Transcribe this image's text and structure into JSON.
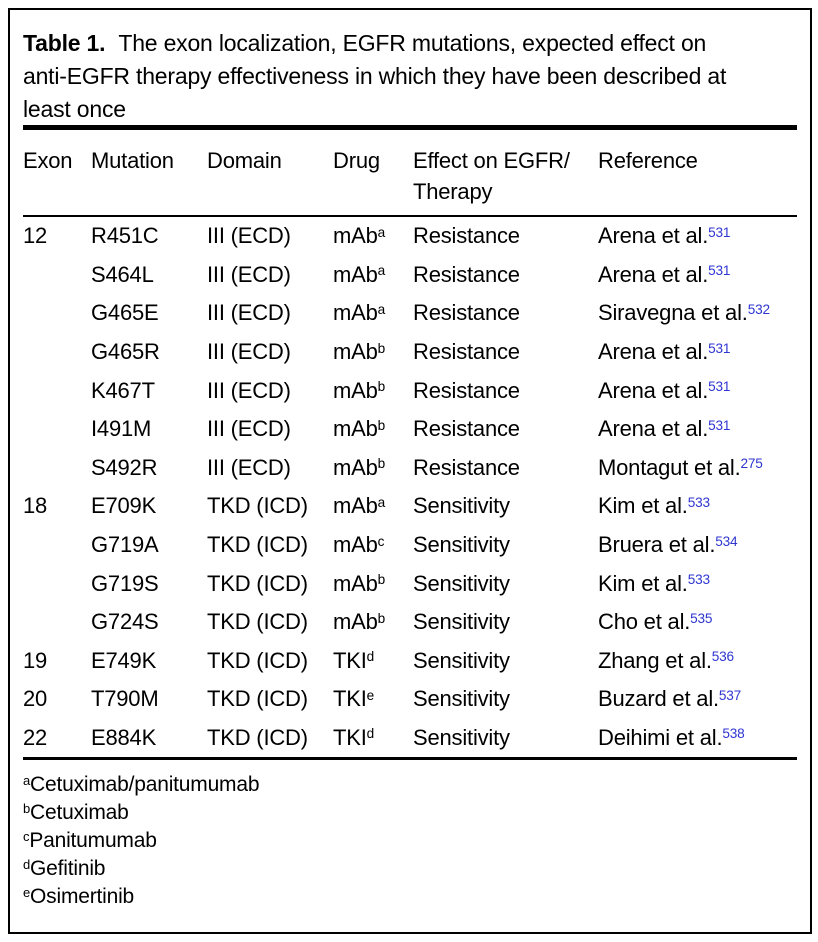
{
  "colors": {
    "reference_link": "#2f36d0",
    "text": "#000000",
    "rule": "#000000",
    "background": "#ffffff"
  },
  "title": {
    "label": "Table 1.",
    "caption": "The exon localization, EGFR mutations, expected effect on\nanti-EGFR therapy effectiveness in which they have been described at\nleast once"
  },
  "table": {
    "columns": [
      "Exon",
      "Mutation",
      "Domain",
      "Drug",
      "Effect on EGFR/\nTherapy",
      "Reference"
    ],
    "rows": [
      {
        "exon": "12",
        "mutation": "R451C",
        "domain": "III (ECD)",
        "drug": "mAb",
        "drug_sup": "a",
        "effect": "Resistance",
        "reference": "Arena et al.",
        "reference_sup": "531"
      },
      {
        "exon": "",
        "mutation": "S464L",
        "domain": "III (ECD)",
        "drug": "mAb",
        "drug_sup": "a",
        "effect": "Resistance",
        "reference": "Arena et al.",
        "reference_sup": "531"
      },
      {
        "exon": "",
        "mutation": "G465E",
        "domain": "III (ECD)",
        "drug": "mAb",
        "drug_sup": "a",
        "effect": "Resistance",
        "reference": "Siravegna et al.",
        "reference_sup": "532"
      },
      {
        "exon": "",
        "mutation": "G465R",
        "domain": "III (ECD)",
        "drug": "mAb",
        "drug_sup": "b",
        "effect": "Resistance",
        "reference": "Arena et al.",
        "reference_sup": "531"
      },
      {
        "exon": "",
        "mutation": "K467T",
        "domain": "III (ECD)",
        "drug": "mAb",
        "drug_sup": "b",
        "effect": "Resistance",
        "reference": "Arena et al.",
        "reference_sup": "531"
      },
      {
        "exon": "",
        "mutation": "I491M",
        "domain": "III (ECD)",
        "drug": "mAb",
        "drug_sup": "b",
        "effect": "Resistance",
        "reference": "Arena et al.",
        "reference_sup": "531"
      },
      {
        "exon": "",
        "mutation": "S492R",
        "domain": "III (ECD)",
        "drug": "mAb",
        "drug_sup": "b",
        "effect": "Resistance",
        "reference": "Montagut et al.",
        "reference_sup": "275"
      },
      {
        "exon": "18",
        "mutation": "E709K",
        "domain": "TKD (ICD)",
        "drug": "mAb",
        "drug_sup": "a",
        "effect": "Sensitivity",
        "reference": "Kim et al.",
        "reference_sup": "533"
      },
      {
        "exon": "",
        "mutation": "G719A",
        "domain": "TKD (ICD)",
        "drug": "mAb",
        "drug_sup": "c",
        "effect": "Sensitivity",
        "reference": "Bruera et al.",
        "reference_sup": "534"
      },
      {
        "exon": "",
        "mutation": "G719S",
        "domain": "TKD (ICD)",
        "drug": "mAb",
        "drug_sup": "b",
        "effect": "Sensitivity",
        "reference": "Kim et al.",
        "reference_sup": "533"
      },
      {
        "exon": "",
        "mutation": "G724S",
        "domain": "TKD (ICD)",
        "drug": "mAb",
        "drug_sup": "b",
        "effect": "Sensitivity",
        "reference": "Cho et al.",
        "reference_sup": "535"
      },
      {
        "exon": "19",
        "mutation": "E749K",
        "domain": "TKD (ICD)",
        "drug": "TKI",
        "drug_sup": "d",
        "effect": "Sensitivity",
        "reference": "Zhang et al.",
        "reference_sup": "536"
      },
      {
        "exon": "20",
        "mutation": "T790M",
        "domain": "TKD (ICD)",
        "drug": "TKI",
        "drug_sup": "e",
        "effect": "Sensitivity",
        "reference": "Buzard et al.",
        "reference_sup": "537"
      },
      {
        "exon": "22",
        "mutation": "E884K",
        "domain": "TKD (ICD)",
        "drug": "TKI",
        "drug_sup": "d",
        "effect": "Sensitivity",
        "reference": "Deihimi et al.",
        "reference_sup": "538"
      }
    ]
  },
  "footnotes": [
    {
      "marker": "a",
      "text": "Cetuximab/panitumumab"
    },
    {
      "marker": "b",
      "text": "Cetuximab"
    },
    {
      "marker": "c",
      "text": "Panitumumab"
    },
    {
      "marker": "d",
      "text": "Gefitinib"
    },
    {
      "marker": "e",
      "text": "Osimertinib"
    }
  ]
}
